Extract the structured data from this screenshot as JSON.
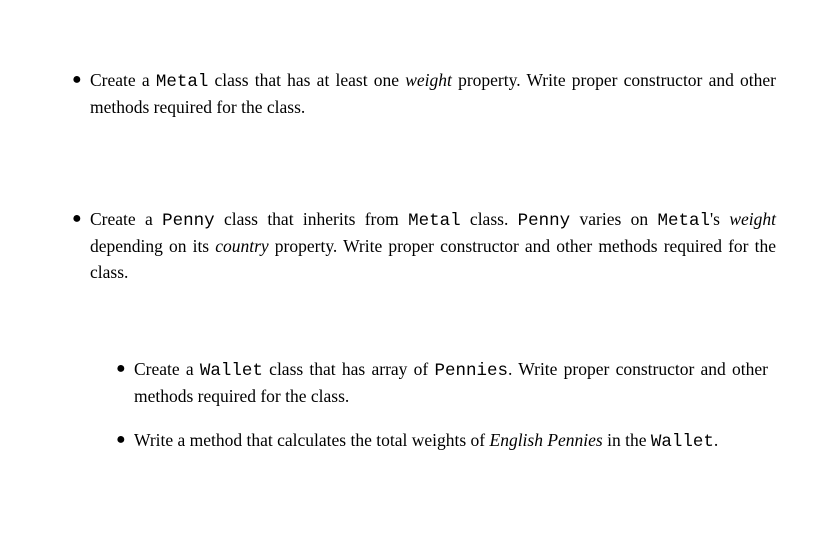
{
  "colors": {
    "background": "#ffffff",
    "text": "#000000"
  },
  "typography": {
    "body_family": "Times New Roman",
    "code_family": "Courier New",
    "body_size_pt": 13,
    "line_height": 1.45
  },
  "bullet_glyph": "●",
  "items": {
    "metal": {
      "segments": [
        {
          "t": "Create a ",
          "cls": ""
        },
        {
          "t": "Metal",
          "cls": "code"
        },
        {
          "t": " class that has at least one ",
          "cls": ""
        },
        {
          "t": "weight",
          "cls": "ital"
        },
        {
          "t": " property.  Write proper constructor and other methods required for the class.",
          "cls": ""
        }
      ]
    },
    "penny": {
      "segments": [
        {
          "t": "Create a ",
          "cls": ""
        },
        {
          "t": "Penny",
          "cls": "code"
        },
        {
          "t": " class that inherits from ",
          "cls": ""
        },
        {
          "t": "Metal",
          "cls": "code"
        },
        {
          "t": " class.  ",
          "cls": ""
        },
        {
          "t": "Penny",
          "cls": "code"
        },
        {
          "t": " varies on ",
          "cls": ""
        },
        {
          "t": "Metal",
          "cls": "code"
        },
        {
          "t": "'s ",
          "cls": ""
        },
        {
          "t": "weight",
          "cls": "ital"
        },
        {
          "t": " depending on its ",
          "cls": ""
        },
        {
          "t": "country",
          "cls": "ital"
        },
        {
          "t": " property. Write proper constructor and other methods required for the class.",
          "cls": ""
        }
      ]
    },
    "wallet": {
      "segments": [
        {
          "t": "Create a ",
          "cls": ""
        },
        {
          "t": "Wallet",
          "cls": "code"
        },
        {
          "t": " class that has array of ",
          "cls": ""
        },
        {
          "t": "Pennies",
          "cls": "code"
        },
        {
          "t": ". Write proper constructor and other methods required for the class.",
          "cls": ""
        }
      ]
    },
    "method": {
      "segments": [
        {
          "t": "Write a method that calculates the total weights of ",
          "cls": ""
        },
        {
          "t": "English Pennies",
          "cls": "ital"
        },
        {
          "t": " in the ",
          "cls": ""
        },
        {
          "t": "Wallet",
          "cls": "code"
        },
        {
          "t": ".",
          "cls": ""
        }
      ]
    }
  }
}
